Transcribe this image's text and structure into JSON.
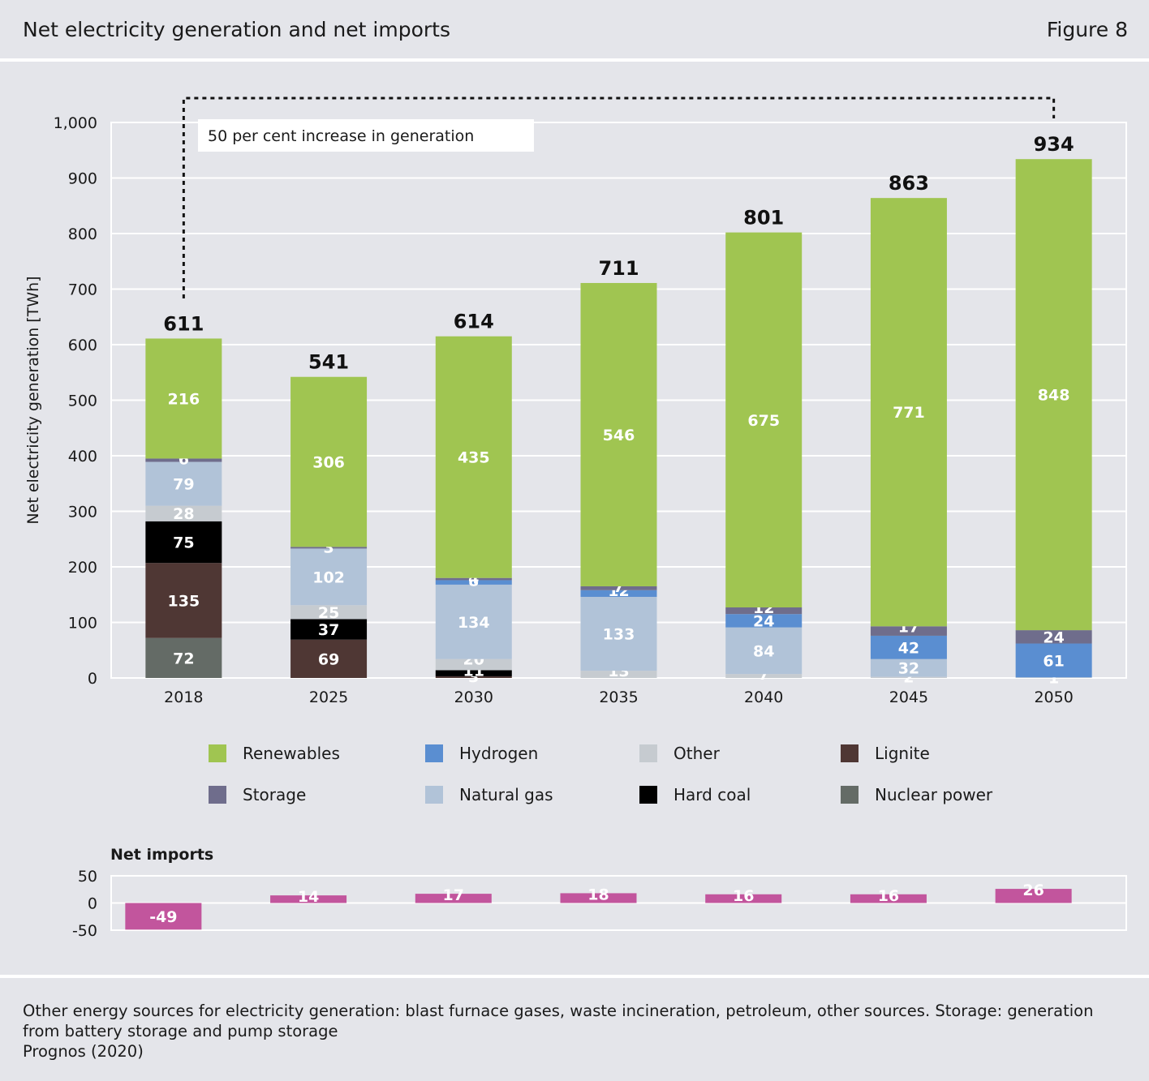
{
  "header": {
    "title": "Net electricity generation and net imports",
    "figure_label": "Figure 8"
  },
  "footer": {
    "note": "Other energy sources for electricity generation: blast furnace gases, waste incineration, petroleum, other sources. Storage: generation from battery storage and pump storage",
    "source": "Prognos (2020)"
  },
  "colors": {
    "Renewables": "#a0c551",
    "Hydrogen": "#5a8ed1",
    "Other": "#c6cbd0",
    "Lignite": "#4f3734",
    "Storage": "#6f6d8c",
    "Natural gas": "#b1c3d8",
    "Hard coal": "#000000",
    "Nuclear power": "#646b66",
    "Net imports": "#c2559d"
  },
  "chart_data": [
    {
      "type": "stacked_bar",
      "ylabel": "Net electricity generation [TWh]",
      "ylim": [
        0,
        1000
      ],
      "yticks": [
        0,
        100,
        200,
        300,
        400,
        500,
        600,
        700,
        800,
        900,
        1000
      ],
      "ytick_labels": [
        "0",
        "100",
        "200",
        "300",
        "400",
        "500",
        "600",
        "700",
        "800",
        "900",
        "1,000"
      ],
      "grid": true,
      "categories": [
        "2018",
        "2025",
        "2030",
        "2035",
        "2040",
        "2045",
        "2050"
      ],
      "totals": [
        611,
        541,
        614,
        711,
        801,
        863,
        934
      ],
      "annotation": "50 per cent increase in generation",
      "series": [
        {
          "name": "Nuclear power",
          "values": [
            72,
            0,
            0,
            0,
            0,
            0,
            0
          ]
        },
        {
          "name": "Lignite",
          "values": [
            135,
            69,
            3,
            0,
            0,
            0,
            0
          ]
        },
        {
          "name": "Hard coal",
          "values": [
            75,
            37,
            11,
            0,
            0,
            0,
            0
          ]
        },
        {
          "name": "Other",
          "values": [
            28,
            25,
            20,
            13,
            7,
            2,
            1
          ]
        },
        {
          "name": "Natural gas",
          "values": [
            79,
            102,
            134,
            133,
            84,
            32,
            0
          ]
        },
        {
          "name": "Hydrogen",
          "values": [
            0,
            0,
            8,
            12,
            24,
            42,
            61
          ]
        },
        {
          "name": "Storage",
          "values": [
            6,
            3,
            4,
            7,
            12,
            17,
            24
          ]
        },
        {
          "name": "Renewables",
          "values": [
            216,
            306,
            435,
            546,
            675,
            771,
            848
          ]
        }
      ],
      "legend": {
        "placement": "bottom",
        "entries": [
          "Renewables",
          "Hydrogen",
          "Other",
          "Lignite",
          "Storage",
          "Natural gas",
          "Hard coal",
          "Nuclear power"
        ]
      }
    },
    {
      "type": "bar",
      "title": "Net imports",
      "categories": [
        "2018",
        "2025",
        "2030",
        "2035",
        "2040",
        "2045",
        "2050"
      ],
      "values": [
        -49,
        14,
        17,
        18,
        16,
        16,
        26
      ],
      "ylim": [
        -50,
        50
      ],
      "yticks": [
        50,
        0,
        -50
      ],
      "ytick_labels": [
        "50",
        "0",
        "-50"
      ]
    }
  ]
}
